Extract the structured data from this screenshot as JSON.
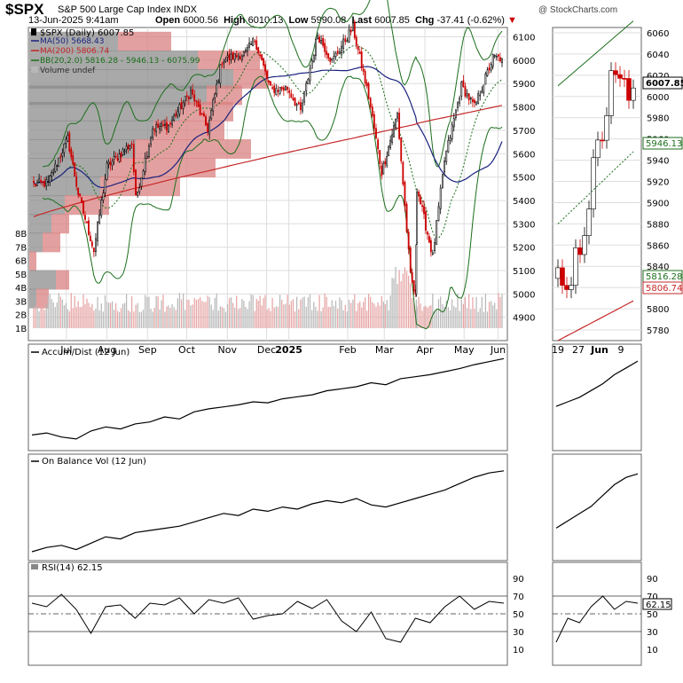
{
  "header": {
    "symbol": "$SPX",
    "name": "S&P 500 Large Cap Index",
    "exchange": "INDX",
    "watermark": "@ StockCharts.com",
    "date": "13-Jun-2025 9:41am",
    "open_label": "Open",
    "open": "6000.56",
    "high_label": "High",
    "high": "6010.13",
    "low_label": "Low",
    "low": "5990.08",
    "last_label": "Last",
    "last": "6007.85",
    "chg_label": "Chg",
    "chg": "-37.41 (-0.62%)",
    "chg_arrow": "▼"
  },
  "legend": {
    "price": "$SPX (Daily) 6007.85",
    "ma50": "MA(50) 5668.43",
    "ma200": "MA(200) 5806.74",
    "bb": "BB(20,2.0) 5816.28 - 5946.13 - 6075.99",
    "volume": "Volume undef"
  },
  "colors": {
    "up": "#000000",
    "down": "#cc0000",
    "ma50": "#1a237e",
    "ma200": "#c62828",
    "bb": "#1b6e1b",
    "volume": "#b7b7b7",
    "volume_down": "#e6a3a3",
    "vbp_up": "#8c8c8c",
    "vbp_down": "#d98080",
    "grid": "#dddddd"
  },
  "indicators": {
    "ad_label": "Accum/Dist (12 Jun)",
    "obv_label": "On Balance Vol (12 Jun)",
    "rsi_label": "RSI(14) 62.15"
  },
  "zoom": {
    "x_labels": [
      "19",
      "27",
      "Jun",
      "9"
    ],
    "y_labels": [
      "6060",
      "6040",
      "6020",
      "6000",
      "5980",
      "5960",
      "5940",
      "5920",
      "5900",
      "5880",
      "5860",
      "5840",
      "5820",
      "5800",
      "5780"
    ],
    "last_badge": "6007.85",
    "mid_badge": "5946.13",
    "lower_badge": "5816.28",
    "ma_badge": "5806.74",
    "rsi_badge": "62.15"
  },
  "chart_data": {
    "type": "candlestick",
    "price_axis_ticks": [
      4900,
      5000,
      5100,
      5200,
      5300,
      5400,
      5500,
      5600,
      5700,
      5800,
      5900,
      6000,
      6100
    ],
    "ylim": [
      4800,
      6140
    ],
    "volume_axis_labels": [
      "1B",
      "2B",
      "3B",
      "4B",
      "5B",
      "6B",
      "7B",
      "8B"
    ],
    "x_labels": [
      "Jul",
      "Aug",
      "Sep",
      "Oct",
      "Nov",
      "Dec",
      "2025",
      "Feb",
      "Mar",
      "Apr",
      "May",
      "Jun"
    ],
    "rsi_axis_labels": [
      "90",
      "70",
      "50",
      "30",
      "10"
    ],
    "rsi_levels": [
      70,
      50,
      30
    ],
    "price_series": {
      "x": [
        "2024-06-20",
        "2024-07-01",
        "2024-07-16",
        "2024-07-24",
        "2024-08-05",
        "2024-08-15",
        "2024-09-03",
        "2024-09-06",
        "2024-09-19",
        "2024-10-01",
        "2024-10-18",
        "2024-10-31",
        "2024-11-11",
        "2024-11-29",
        "2024-12-06",
        "2024-12-18",
        "2024-12-31",
        "2025-01-10",
        "2025-01-23",
        "2025-02-03",
        "2025-02-19",
        "2025-03-03",
        "2025-03-13",
        "2025-03-25",
        "2025-04-04",
        "2025-04-08",
        "2025-04-09",
        "2025-04-21",
        "2025-04-30",
        "2025-05-13",
        "2025-05-23",
        "2025-06-06",
        "2025-06-13"
      ],
      "close": [
        5470,
        5475,
        5665,
        5430,
        5185,
        5545,
        5645,
        5405,
        5710,
        5720,
        5865,
        5705,
        6000,
        6030,
        6090,
        5875,
        5880,
        5780,
        6110,
        5995,
        6140,
        5845,
        5520,
        5770,
        5075,
        4985,
        5455,
        5160,
        5570,
        5890,
        5800,
        6010,
        6008
      ]
    },
    "ma50_last": 5668.43,
    "ma200_last": 5806.74,
    "bb_last": {
      "lower": 5816.28,
      "middle": 5946.13,
      "upper": 6075.99
    },
    "accum_dist": [
      22,
      24,
      20,
      18,
      26,
      30,
      28,
      33,
      35,
      40,
      38,
      45,
      48,
      50,
      52,
      55,
      54,
      58,
      60,
      62,
      66,
      68,
      70,
      74,
      72,
      78,
      80,
      82,
      85,
      88,
      92,
      95,
      98
    ],
    "on_balance_vol": [
      10,
      14,
      16,
      12,
      18,
      24,
      22,
      28,
      30,
      32,
      34,
      38,
      42,
      46,
      44,
      50,
      48,
      52,
      50,
      55,
      58,
      56,
      60,
      54,
      52,
      56,
      60,
      64,
      68,
      74,
      80,
      84,
      86
    ],
    "rsi": [
      62,
      58,
      72,
      55,
      28,
      58,
      60,
      45,
      62,
      60,
      68,
      50,
      66,
      62,
      68,
      44,
      48,
      50,
      64,
      56,
      66,
      42,
      30,
      52,
      22,
      18,
      45,
      40,
      58,
      70,
      55,
      64,
      62
    ]
  }
}
